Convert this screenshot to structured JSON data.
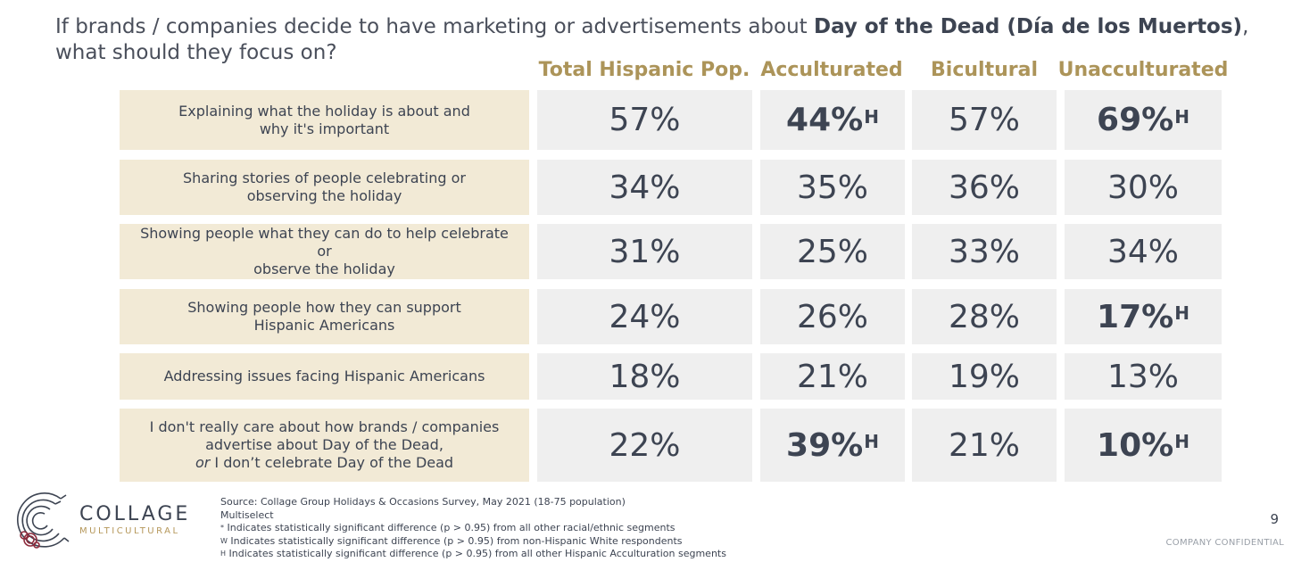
{
  "title": {
    "pre": "If brands / companies decide to have marketing or advertisements about ",
    "bold": "Day of the Dead (Día de los Muertos)",
    "post": ",",
    "line2": "what should they focus on?"
  },
  "chart_data": {
    "type": "table",
    "columns": [
      "Total Hispanic Pop.",
      "Acculturated",
      "Bicultural",
      "Unacculturated"
    ],
    "rows": [
      {
        "label_lines": [
          "Explaining what the holiday is about and",
          "why it's important"
        ],
        "cells": [
          {
            "value": "57%",
            "sig": "",
            "bold": false
          },
          {
            "value": "44%",
            "sig": "H",
            "bold": true
          },
          {
            "value": "57%",
            "sig": "",
            "bold": false
          },
          {
            "value": "69%",
            "sig": "H",
            "bold": true
          }
        ]
      },
      {
        "label_lines": [
          "Sharing stories of people celebrating or",
          "observing the holiday"
        ],
        "cells": [
          {
            "value": "34%",
            "sig": "",
            "bold": false
          },
          {
            "value": "35%",
            "sig": "",
            "bold": false
          },
          {
            "value": "36%",
            "sig": "",
            "bold": false
          },
          {
            "value": "30%",
            "sig": "",
            "bold": false
          }
        ]
      },
      {
        "label_lines": [
          "Showing people what they can do to help celebrate or",
          "observe the holiday"
        ],
        "cells": [
          {
            "value": "31%",
            "sig": "",
            "bold": false
          },
          {
            "value": "25%",
            "sig": "",
            "bold": false
          },
          {
            "value": "33%",
            "sig": "",
            "bold": false
          },
          {
            "value": "34%",
            "sig": "",
            "bold": false
          }
        ]
      },
      {
        "label_lines": [
          "Showing people how they can support",
          "Hispanic Americans"
        ],
        "cells": [
          {
            "value": "24%",
            "sig": "",
            "bold": false
          },
          {
            "value": "26%",
            "sig": "",
            "bold": false
          },
          {
            "value": "28%",
            "sig": "",
            "bold": false
          },
          {
            "value": "17%",
            "sig": "H",
            "bold": true
          }
        ]
      },
      {
        "label_lines": [
          "Addressing issues facing Hispanic Americans"
        ],
        "cells": [
          {
            "value": "18%",
            "sig": "",
            "bold": false
          },
          {
            "value": "21%",
            "sig": "",
            "bold": false
          },
          {
            "value": "19%",
            "sig": "",
            "bold": false
          },
          {
            "value": "13%",
            "sig": "",
            "bold": false
          }
        ]
      },
      {
        "label_lines": [
          "I don't really care about how brands / companies",
          "advertise about Day of the Dead,"
        ],
        "label_italic_prefix": "or",
        "label_last_line": " I don’t celebrate Day of the Dead",
        "cells": [
          {
            "value": "22%",
            "sig": "",
            "bold": false
          },
          {
            "value": "39%",
            "sig": "H",
            "bold": true
          },
          {
            "value": "21%",
            "sig": "",
            "bold": false
          },
          {
            "value": "10%",
            "sig": "H",
            "bold": true
          }
        ]
      }
    ]
  },
  "brand": {
    "name": "COLLAGE",
    "sub": "MULTICULTURAL",
    "logo_icon": "collage-circle-logo-icon"
  },
  "notes": {
    "source": "Source: Collage Group Holidays & Occasions Survey, May 2021 (18-75 population)",
    "multiselect": "Multiselect",
    "legend": [
      {
        "marker": "*",
        "text": "Indicates statistically significant difference (p > 0.95) from all other racial/ethnic segments"
      },
      {
        "marker": "W",
        "text": "Indicates statistically significant difference (p > 0.95) from non-Hispanic White respondents"
      },
      {
        "marker": "H",
        "text": "Indicates statistically significant difference (p > 0.95) from all other Hispanic Acculturation segments"
      }
    ]
  },
  "page_number": "9",
  "confidential": "COMPANY CONFIDENTIAL",
  "colors": {
    "gold": "#ac9459",
    "label_bg": "#f2ead6",
    "cell_bg": "#efefef",
    "text": "#3d4452",
    "logo_red": "#8e2b3c"
  }
}
